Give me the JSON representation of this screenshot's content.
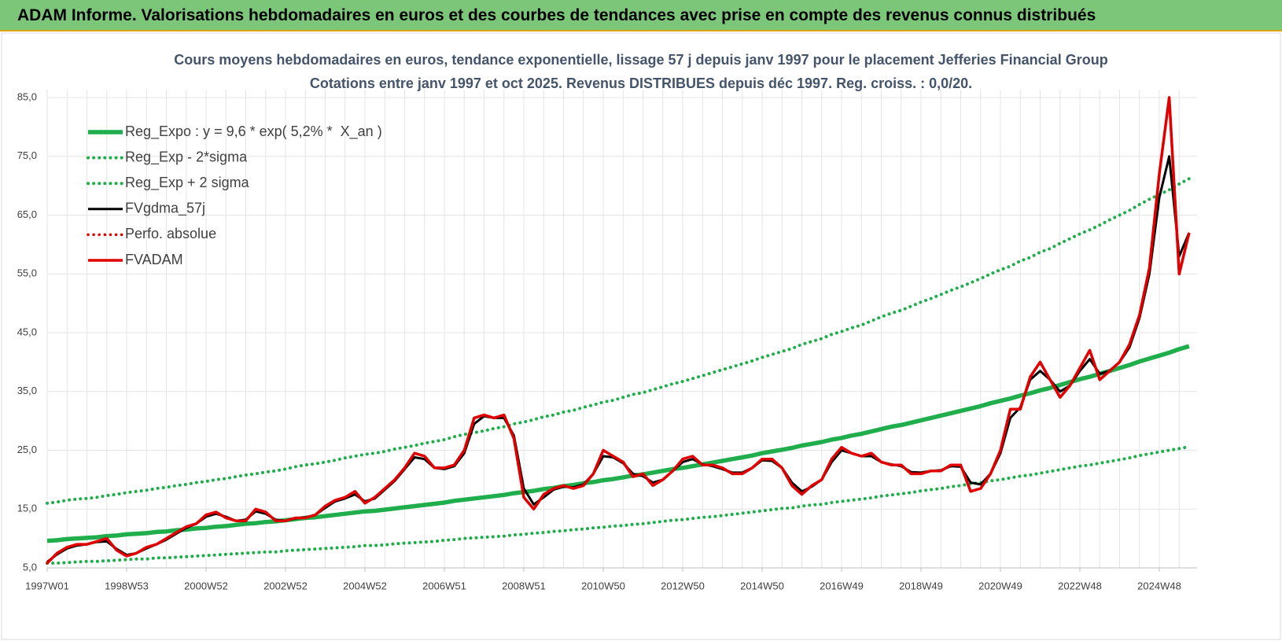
{
  "header": {
    "title": "ADAM Informe. Valorisations hebdomadaires en euros et des courbes de tendances avec prise en compte des revenus connus distribués"
  },
  "chart_data": {
    "type": "line",
    "title": "Cours moyens hebdomadaires en euros, tendance exponentielle, lissage 57 j depuis janv 1997 pour le placement Jefferies Financial Group",
    "subtitle": "Cotations entre janv 1997 et oct 2025. Revenus DISTRIBUES depuis déc 1997. Reg. croiss. : 0,0/20.",
    "categories": [
      "1997W01",
      null,
      null,
      null,
      null,
      null,
      null,
      null,
      "1998W53",
      null,
      null,
      null,
      null,
      null,
      null,
      null,
      "2000W52",
      null,
      null,
      null,
      null,
      null,
      null,
      null,
      "2002W52",
      null,
      null,
      null,
      null,
      null,
      null,
      null,
      "2004W52",
      null,
      null,
      null,
      null,
      null,
      null,
      null,
      "2006W51",
      null,
      null,
      null,
      null,
      null,
      null,
      null,
      "2008W51",
      null,
      null,
      null,
      null,
      null,
      null,
      null,
      "2010W50",
      null,
      null,
      null,
      null,
      null,
      null,
      null,
      "2012W50",
      null,
      null,
      null,
      null,
      null,
      null,
      null,
      "2014W50",
      null,
      null,
      null,
      null,
      null,
      null,
      null,
      "2016W49",
      null,
      null,
      null,
      null,
      null,
      null,
      null,
      "2018W49",
      null,
      null,
      null,
      null,
      null,
      null,
      null,
      "2020W49",
      null,
      null,
      null,
      null,
      null,
      null,
      null,
      "2022W48",
      null,
      null,
      null,
      null,
      null,
      null,
      null,
      "2024W48",
      null,
      null,
      null
    ],
    "ylim": [
      5,
      85
    ],
    "yticks": [
      {
        "value": 5,
        "label": "5,0"
      },
      {
        "value": 15,
        "label": "15,0"
      },
      {
        "value": 25,
        "label": "25,0"
      },
      {
        "value": 35,
        "label": "35,0"
      },
      {
        "value": 45,
        "label": "45,0"
      },
      {
        "value": 55,
        "label": "55,0"
      },
      {
        "value": 65,
        "label": "65,0"
      },
      {
        "value": 75,
        "label": "75,0"
      },
      {
        "value": 85,
        "label": "85,0"
      }
    ],
    "grid": true,
    "legend": "upper left",
    "series": [
      {
        "name": "Reg_Expo : y = 9,6 * exp( 5,2% *  X_an )",
        "color": "#1fae4b",
        "line_style": "solid",
        "values": [
          9.6,
          9.7,
          9.9,
          10.0,
          10.1,
          10.2,
          10.4,
          10.5,
          10.7,
          10.8,
          10.9,
          11.1,
          11.2,
          11.4,
          11.5,
          11.7,
          11.8,
          12.0,
          12.1,
          12.3,
          12.5,
          12.6,
          12.8,
          12.9,
          13.1,
          13.3,
          13.5,
          13.6,
          13.8,
          14.0,
          14.2,
          14.4,
          14.6,
          14.7,
          14.9,
          15.1,
          15.3,
          15.5,
          15.7,
          15.9,
          16.1,
          16.4,
          16.6,
          16.8,
          17.0,
          17.2,
          17.4,
          17.7,
          17.9,
          18.1,
          18.4,
          18.6,
          18.9,
          19.1,
          19.4,
          19.6,
          19.9,
          20.1,
          20.4,
          20.7,
          20.9,
          21.2,
          21.5,
          21.8,
          22.0,
          22.3,
          22.6,
          22.9,
          23.2,
          23.5,
          23.8,
          24.1,
          24.5,
          24.8,
          25.1,
          25.4,
          25.8,
          26.1,
          26.4,
          26.8,
          27.1,
          27.5,
          27.8,
          28.2,
          28.6,
          29.0,
          29.3,
          29.7,
          30.1,
          30.5,
          30.9,
          31.3,
          31.7,
          32.1,
          32.5,
          33.0,
          33.4,
          33.8,
          34.3,
          34.7,
          35.2,
          35.6,
          36.1,
          36.6,
          37.1,
          37.5,
          38.0,
          38.5,
          39.0,
          39.5,
          40.1,
          40.6,
          41.1,
          41.6,
          42.2,
          42.7
        ]
      },
      {
        "name": "Reg_Exp - 2*sigma",
        "color": "#1fae4b",
        "line_style": "dotted",
        "values": [
          5.8,
          5.8,
          5.9,
          6.0,
          6.1,
          6.1,
          6.2,
          6.3,
          6.4,
          6.5,
          6.5,
          6.7,
          6.7,
          6.8,
          6.9,
          7.0,
          7.1,
          7.2,
          7.3,
          7.4,
          7.5,
          7.6,
          7.7,
          7.7,
          7.9,
          8.0,
          8.1,
          8.2,
          8.3,
          8.4,
          8.5,
          8.6,
          8.8,
          8.8,
          8.9,
          9.1,
          9.2,
          9.3,
          9.4,
          9.5,
          9.7,
          9.8,
          10.0,
          10.1,
          10.2,
          10.3,
          10.4,
          10.6,
          10.7,
          10.9,
          11.0,
          11.2,
          11.3,
          11.5,
          11.6,
          11.8,
          11.9,
          12.1,
          12.2,
          12.4,
          12.5,
          12.7,
          12.9,
          13.1,
          13.2,
          13.4,
          13.6,
          13.7,
          13.9,
          14.1,
          14.3,
          14.5,
          14.7,
          14.9,
          15.1,
          15.2,
          15.5,
          15.7,
          15.8,
          16.1,
          16.3,
          16.5,
          16.7,
          16.9,
          17.2,
          17.4,
          17.6,
          17.8,
          18.1,
          18.3,
          18.5,
          18.8,
          19.0,
          19.3,
          19.5,
          19.8,
          20.0,
          20.3,
          20.6,
          20.8,
          21.1,
          21.4,
          21.7,
          22.0,
          22.3,
          22.5,
          22.8,
          23.1,
          23.4,
          23.7,
          24.1,
          24.4,
          24.7,
          25.0,
          25.3,
          25.6
        ]
      },
      {
        "name": "Reg_Exp + 2 sigma",
        "color": "#1fae4b",
        "line_style": "dotted",
        "values": [
          16.0,
          16.2,
          16.5,
          16.7,
          16.8,
          17.0,
          17.3,
          17.5,
          17.8,
          18.0,
          18.2,
          18.5,
          18.7,
          19.0,
          19.2,
          19.5,
          19.7,
          20.0,
          20.2,
          20.5,
          20.8,
          21.0,
          21.3,
          21.5,
          21.8,
          22.2,
          22.5,
          22.7,
          23.0,
          23.3,
          23.7,
          24.0,
          24.3,
          24.5,
          24.8,
          25.2,
          25.5,
          25.8,
          26.2,
          26.5,
          26.8,
          27.3,
          27.7,
          28.0,
          28.3,
          28.7,
          29.0,
          29.5,
          29.8,
          30.2,
          30.7,
          31.0,
          31.5,
          31.8,
          32.3,
          32.7,
          33.2,
          33.5,
          34.0,
          34.5,
          34.8,
          35.3,
          35.8,
          36.3,
          36.7,
          37.2,
          37.7,
          38.2,
          38.7,
          39.2,
          39.7,
          40.2,
          40.8,
          41.3,
          41.8,
          42.3,
          43.0,
          43.5,
          44.0,
          44.7,
          45.2,
          45.8,
          46.3,
          47.0,
          47.7,
          48.3,
          48.8,
          49.5,
          50.2,
          50.8,
          51.5,
          52.2,
          52.8,
          53.5,
          54.2,
          55.0,
          55.7,
          56.3,
          57.2,
          57.8,
          58.7,
          59.3,
          60.2,
          61.0,
          61.8,
          62.5,
          63.3,
          64.2,
          65.0,
          65.8,
          66.8,
          67.7,
          68.5,
          69.3,
          70.3,
          71.2
        ]
      },
      {
        "name": "FVgdma_57j",
        "color": "#000000",
        "line_style": "solid",
        "values": [
          6.0,
          7.3,
          8.3,
          8.8,
          9.0,
          9.4,
          9.5,
          8.2,
          7.2,
          7.5,
          8.3,
          9.0,
          9.8,
          10.8,
          11.8,
          12.5,
          13.7,
          14.2,
          13.7,
          13.0,
          13.2,
          14.6,
          14.2,
          13.2,
          13.0,
          13.4,
          13.6,
          14.0,
          15.2,
          16.3,
          16.8,
          17.5,
          16.3,
          16.8,
          18.3,
          19.8,
          21.8,
          23.8,
          23.5,
          22.0,
          21.8,
          22.3,
          24.5,
          29.5,
          30.8,
          30.5,
          30.5,
          27.5,
          18.5,
          15.8,
          17.0,
          18.3,
          18.8,
          18.7,
          19.2,
          21.0,
          24.0,
          23.8,
          22.8,
          21.0,
          20.6,
          19.5,
          20.0,
          21.5,
          23.0,
          23.5,
          22.6,
          22.3,
          21.8,
          21.2,
          21.2,
          22.0,
          23.3,
          23.2,
          22.0,
          19.5,
          18.0,
          18.8,
          20.0,
          23.0,
          25.0,
          24.5,
          24.0,
          24.0,
          23.0,
          22.6,
          22.3,
          21.3,
          21.2,
          21.5,
          21.6,
          22.3,
          22.2,
          19.5,
          19.2,
          21.0,
          24.5,
          30.5,
          32.3,
          37.0,
          38.5,
          37.0,
          35.0,
          36.0,
          38.5,
          40.5,
          38.0,
          38.5,
          40.0,
          42.5,
          47.5,
          55.0,
          68.0,
          75.0,
          58.0,
          62.0
        ]
      },
      {
        "name": "Perfo. absolue",
        "color": "#e00000",
        "line_style": "dotted",
        "values": [
          5.8,
          7.5,
          8.5,
          9.0,
          9.0,
          9.5,
          10.0,
          8.0,
          7.0,
          7.5,
          8.5,
          9.0,
          10.0,
          11.0,
          12.0,
          12.5,
          14.0,
          14.5,
          13.5,
          13.0,
          13.0,
          15.0,
          14.5,
          13.0,
          13.0,
          13.5,
          13.5,
          14.0,
          15.5,
          16.5,
          17.0,
          18.0,
          16.0,
          17.0,
          18.5,
          20.0,
          22.0,
          24.5,
          24.0,
          22.0,
          22.0,
          22.5,
          25.0,
          30.5,
          31.0,
          30.5,
          31.0,
          27.0,
          17.0,
          15.0,
          17.5,
          18.5,
          19.0,
          18.5,
          19.0,
          21.0,
          25.0,
          24.0,
          23.0,
          20.5,
          21.0,
          19.0,
          20.0,
          21.5,
          23.5,
          24.0,
          22.5,
          22.5,
          22.0,
          21.0,
          21.0,
          22.0,
          23.5,
          23.5,
          22.0,
          19.0,
          17.5,
          19.0,
          20.0,
          23.5,
          25.5,
          24.5,
          24.0,
          24.5,
          23.0,
          22.5,
          22.5,
          21.0,
          21.0,
          21.5,
          21.5,
          22.5,
          22.5,
          18.0,
          18.5,
          21.0,
          25.0,
          32.0,
          32.0,
          37.5,
          40.0,
          37.0,
          34.0,
          36.0,
          39.0,
          42.0,
          37.0,
          38.5,
          40.0,
          43.0,
          48.0,
          56.0,
          72.0,
          85.0,
          55.0,
          62.0
        ]
      },
      {
        "name": "FVADAM",
        "color": "#e00000",
        "line_style": "solid",
        "values": [
          5.8,
          7.5,
          8.5,
          9.0,
          9.0,
          9.5,
          10.0,
          8.0,
          7.0,
          7.5,
          8.5,
          9.0,
          10.0,
          11.0,
          12.0,
          12.5,
          14.0,
          14.5,
          13.5,
          13.0,
          13.0,
          15.0,
          14.5,
          13.0,
          13.0,
          13.5,
          13.5,
          14.0,
          15.5,
          16.5,
          17.0,
          18.0,
          16.0,
          17.0,
          18.5,
          20.0,
          22.0,
          24.5,
          24.0,
          22.0,
          22.0,
          22.5,
          25.0,
          30.5,
          31.0,
          30.5,
          31.0,
          27.0,
          17.0,
          15.0,
          17.5,
          18.5,
          19.0,
          18.5,
          19.0,
          21.0,
          25.0,
          24.0,
          23.0,
          20.5,
          21.0,
          19.0,
          20.0,
          21.5,
          23.5,
          24.0,
          22.5,
          22.5,
          22.0,
          21.0,
          21.0,
          22.0,
          23.5,
          23.5,
          22.0,
          19.0,
          17.5,
          19.0,
          20.0,
          23.5,
          25.5,
          24.5,
          24.0,
          24.5,
          23.0,
          22.5,
          22.5,
          21.0,
          21.0,
          21.5,
          21.5,
          22.5,
          22.5,
          18.0,
          18.5,
          21.0,
          25.0,
          32.0,
          32.0,
          37.5,
          40.0,
          37.0,
          34.0,
          36.0,
          39.0,
          42.0,
          37.0,
          38.5,
          40.0,
          43.0,
          48.0,
          56.0,
          72.0,
          85.0,
          55.0,
          62.0
        ]
      }
    ]
  }
}
